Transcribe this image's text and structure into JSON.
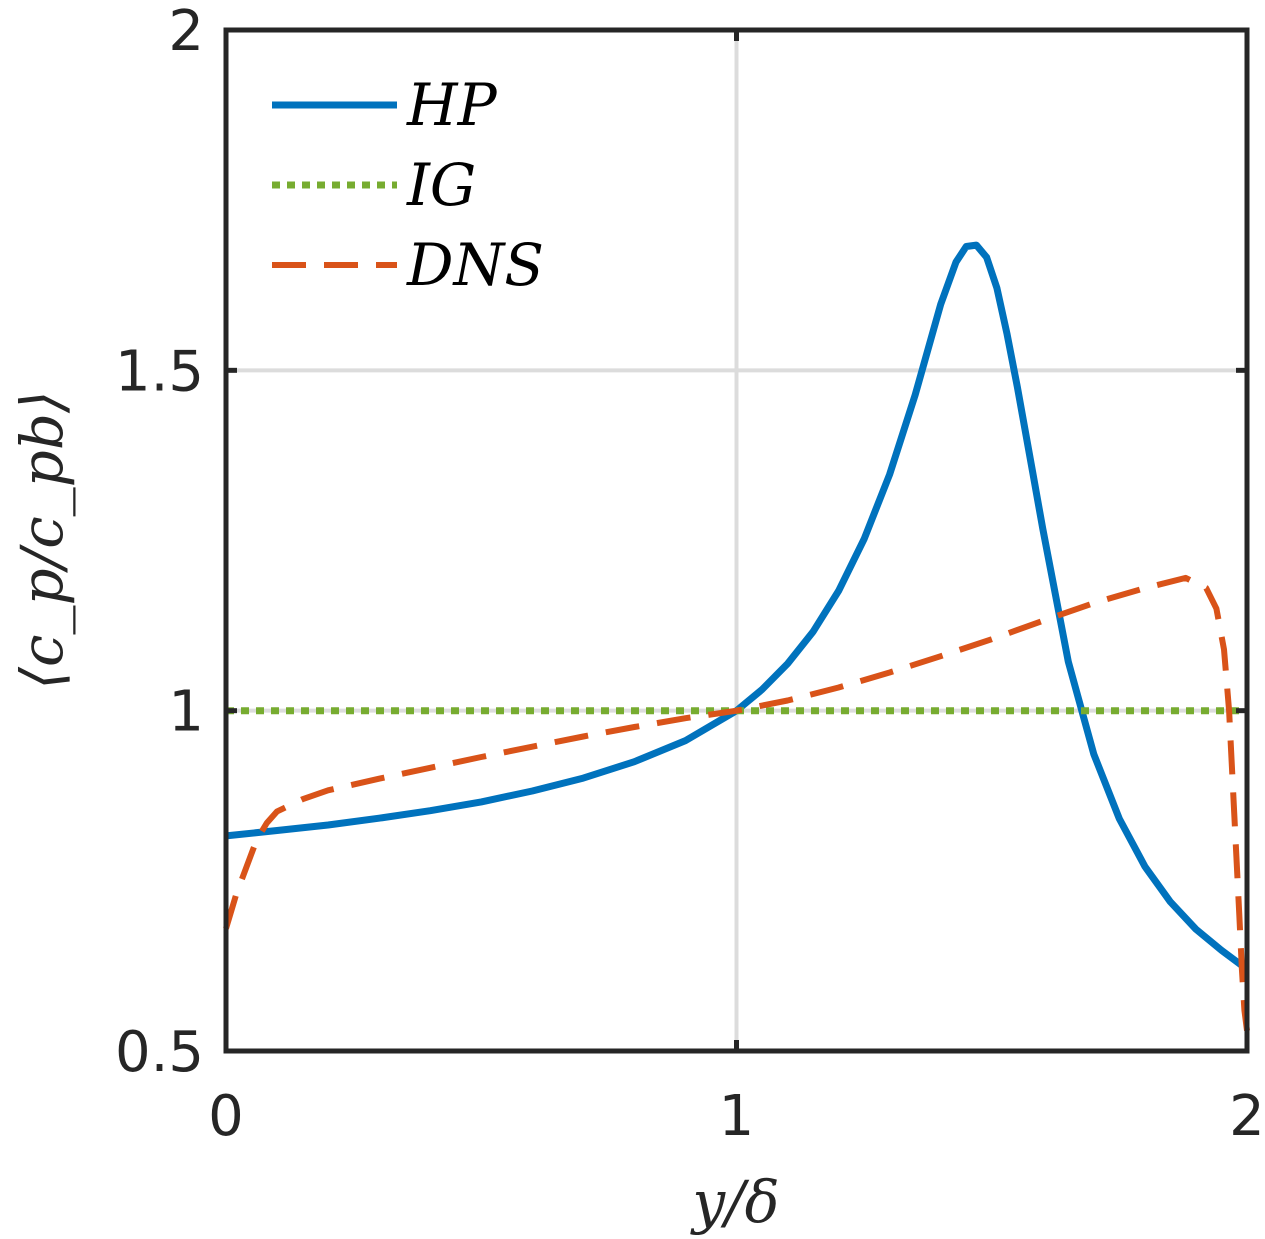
{
  "chart_data": {
    "type": "line",
    "title": "",
    "xlabel": "y/δ",
    "ylabel": "⟨c_p/c_pb⟩",
    "xlim": [
      0,
      2
    ],
    "ylim": [
      0.5,
      2
    ],
    "grid": true,
    "legend_position": "top-left",
    "x_ticks": [
      0,
      1,
      2
    ],
    "x_tick_labels": [
      "0",
      "1",
      "2"
    ],
    "y_ticks": [
      0.5,
      1,
      1.5,
      2
    ],
    "y_tick_labels": [
      "0.5",
      "1",
      "1.5",
      "2"
    ],
    "series": [
      {
        "name": "HP",
        "color": "#0072BD",
        "style": "solid",
        "x": [
          0,
          0.1,
          0.2,
          0.3,
          0.4,
          0.5,
          0.6,
          0.7,
          0.8,
          0.9,
          1.0,
          1.05,
          1.1,
          1.15,
          1.2,
          1.25,
          1.3,
          1.35,
          1.4,
          1.43,
          1.45,
          1.47,
          1.49,
          1.51,
          1.53,
          1.55,
          1.58,
          1.6,
          1.65,
          1.7,
          1.75,
          1.8,
          1.85,
          1.9,
          1.95,
          2.0
        ],
        "y": [
          0.816,
          0.824,
          0.832,
          0.842,
          0.853,
          0.866,
          0.882,
          0.901,
          0.925,
          0.956,
          1.0,
          1.031,
          1.069,
          1.116,
          1.176,
          1.252,
          1.347,
          1.464,
          1.597,
          1.659,
          1.682,
          1.684,
          1.666,
          1.621,
          1.553,
          1.476,
          1.351,
          1.267,
          1.072,
          0.936,
          0.841,
          0.771,
          0.719,
          0.679,
          0.648,
          0.62
        ]
      },
      {
        "name": "IG",
        "color": "#77AC30",
        "style": "dotted",
        "x": [
          0,
          2
        ],
        "y": [
          1.0,
          1.0
        ]
      },
      {
        "name": "DNS",
        "color": "#D95319",
        "style": "dashed",
        "x": [
          0,
          0.01,
          0.02,
          0.04,
          0.06,
          0.08,
          0.1,
          0.15,
          0.2,
          0.3,
          0.4,
          0.5,
          0.6,
          0.7,
          0.8,
          0.9,
          1.0,
          1.1,
          1.2,
          1.3,
          1.4,
          1.5,
          1.6,
          1.7,
          1.8,
          1.88,
          1.92,
          1.94,
          1.955,
          1.965,
          1.975,
          1.985,
          1.99,
          1.995,
          2.0
        ],
        "y": [
          0.68,
          0.705,
          0.73,
          0.77,
          0.81,
          0.835,
          0.852,
          0.87,
          0.883,
          0.9,
          0.916,
          0.932,
          0.947,
          0.962,
          0.976,
          0.989,
          1.0,
          1.015,
          1.034,
          1.056,
          1.08,
          1.105,
          1.132,
          1.158,
          1.18,
          1.195,
          1.18,
          1.15,
          1.09,
          1.0,
          0.85,
          0.7,
          0.62,
          0.56,
          0.53
        ]
      }
    ]
  }
}
